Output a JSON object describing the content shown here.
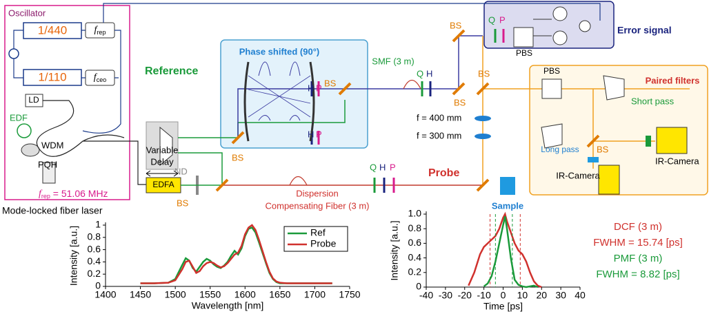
{
  "labels": [
    "Oscillator",
    "1/440",
    "1/110",
    "LD",
    "EDF",
    "WDM",
    "PQH",
    "Mode-locked fiber laser",
    "Variable",
    "Delay",
    "Reference",
    "Phase shifted (90°)",
    "H",
    "P",
    "BS",
    "H",
    "P",
    "BS",
    "ND",
    "EDFA",
    "BS",
    "Dispersion",
    "Compensating Fiber (3 m)",
    "SMF (3 m)",
    "Q",
    "H",
    "BS",
    "BS",
    "BS",
    "Q",
    "P",
    "PBS",
    "Error signal",
    "f = 400 mm",
    "f = 300 mm",
    "Q",
    "H",
    "P",
    "Probe",
    "Sample",
    "PBS",
    "Paired filters",
    "Short pass",
    "BS",
    "IR-Camera",
    "Long pass",
    "IR-Camera"
  ],
  "freq_labels": [
    {
      "symbol": "f",
      "sub": "rep"
    },
    {
      "symbol": "f",
      "sub": "ceo"
    },
    {
      "symbol": "f",
      "sub": "rep",
      "text": " = 51.06 MHz"
    }
  ],
  "chart_data": [
    {
      "type": "line",
      "xlabel": "Wavelength [nm]",
      "ylabel": "Intensity [a.u.]",
      "xlim": [
        1400,
        1750
      ],
      "ylim": [
        0,
        1
      ],
      "xticks": [
        1400,
        1450,
        1500,
        1550,
        1600,
        1650,
        1700,
        1750
      ],
      "yticks": [
        0,
        0.2,
        0.4,
        0.6,
        0.8,
        1
      ],
      "legend": "upper right",
      "x": [
        1450,
        1470,
        1490,
        1500,
        1510,
        1515,
        1520,
        1525,
        1530,
        1535,
        1540,
        1545,
        1550,
        1555,
        1560,
        1565,
        1570,
        1575,
        1580,
        1585,
        1590,
        1595,
        1600,
        1605,
        1610,
        1615,
        1620,
        1625,
        1630,
        1635,
        1640,
        1645,
        1650,
        1660,
        1680,
        1700,
        1725
      ],
      "series": [
        {
          "name": "Ref",
          "color": "#1a9a3a",
          "values": [
            0.05,
            0.05,
            0.06,
            0.12,
            0.35,
            0.46,
            0.42,
            0.3,
            0.24,
            0.32,
            0.4,
            0.45,
            0.42,
            0.36,
            0.32,
            0.3,
            0.34,
            0.4,
            0.5,
            0.58,
            0.52,
            0.62,
            0.82,
            0.94,
            0.96,
            0.88,
            0.72,
            0.55,
            0.38,
            0.22,
            0.12,
            0.07,
            0.05,
            0.05,
            0.05,
            0.05,
            0.05
          ]
        },
        {
          "name": "Probe",
          "color": "#d0312d",
          "values": [
            0.05,
            0.05,
            0.06,
            0.1,
            0.28,
            0.4,
            0.42,
            0.32,
            0.22,
            0.25,
            0.33,
            0.38,
            0.4,
            0.38,
            0.34,
            0.31,
            0.33,
            0.38,
            0.45,
            0.52,
            0.55,
            0.66,
            0.85,
            0.96,
            1.0,
            0.92,
            0.76,
            0.58,
            0.4,
            0.24,
            0.13,
            0.08,
            0.06,
            0.05,
            0.05,
            0.05,
            0.05
          ]
        }
      ]
    },
    {
      "type": "line",
      "xlabel": "Time [ps]",
      "ylabel": "Intensity [a.u.]",
      "xlim": [
        -40,
        40
      ],
      "ylim": [
        0,
        1
      ],
      "xticks": [
        -40,
        -30,
        -20,
        -10,
        0,
        10,
        20,
        30,
        40
      ],
      "yticks": [
        0,
        0.2,
        0.4,
        0.6,
        0.8,
        {
          "value": 1,
          "label": "1.0"
        }
      ],
      "annotations": [
        {
          "text": "DCF (3 m)",
          "color": "#d0312d"
        },
        {
          "text": "FWHM = 15.74 [ps]",
          "color": "#d0312d"
        },
        {
          "text": "PMF (3 m)",
          "color": "#1a9a3a"
        },
        {
          "text": "FWHM = 8.82 [ps]",
          "color": "#1a9a3a"
        }
      ],
      "series": [
        {
          "name": "DCF (3 m)",
          "color": "#d0312d",
          "marker_lines": [
            -6.8,
            8.9
          ],
          "x": [
            -18,
            -15,
            -12,
            -10,
            -8,
            -6,
            -4,
            -2,
            0,
            1,
            2,
            4,
            6,
            8,
            10,
            12,
            14,
            16,
            18,
            20
          ],
          "values": [
            0.02,
            0.2,
            0.45,
            0.55,
            0.6,
            0.65,
            0.7,
            0.8,
            0.95,
            1.0,
            0.9,
            0.75,
            0.6,
            0.5,
            0.45,
            0.35,
            0.2,
            0.08,
            0.02,
            0
          ]
        },
        {
          "name": "PMF (3 m)",
          "color": "#1a9a3a",
          "marker_lines": [
            -4,
            4.8
          ],
          "x": [
            -10,
            -8,
            -6,
            -4,
            -2,
            0,
            1,
            2,
            4,
            6,
            8,
            10,
            12,
            16,
            18
          ],
          "values": [
            0.01,
            0.05,
            0.15,
            0.35,
            0.6,
            0.85,
            0.97,
            0.8,
            0.4,
            0.1,
            0.03,
            0.01,
            0,
            0.02,
            0
          ]
        }
      ]
    }
  ]
}
